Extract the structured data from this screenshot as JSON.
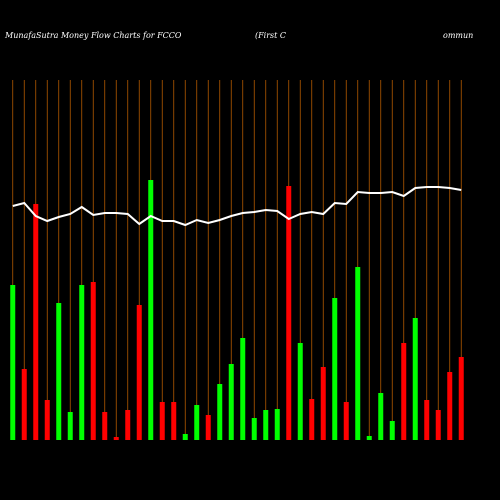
{
  "chart_data": {
    "type": "bar",
    "title_segments": [
      "MunafaSutra  Money Flow  Charts for FCCO",
      "(First C",
      "ommun"
    ],
    "categories": [
      null,
      null,
      null,
      null,
      null,
      null,
      null,
      null,
      null,
      null,
      null,
      null,
      null,
      null,
      null,
      null,
      null,
      null,
      null,
      null,
      null,
      null,
      null,
      null,
      null,
      null,
      null,
      null,
      null,
      null,
      null,
      null,
      null,
      null,
      null,
      null,
      null,
      null,
      null,
      null
    ],
    "values": [
      155,
      71,
      236,
      40,
      137,
      28,
      155,
      158,
      28,
      3,
      30,
      135,
      260,
      38,
      38,
      6,
      35,
      25,
      56,
      76,
      102,
      22,
      30,
      31,
      254,
      97,
      41,
      73,
      142,
      38,
      173,
      4,
      47,
      19,
      97,
      122,
      40,
      30,
      68,
      83
    ],
    "colors": [
      "#00ff00",
      "#ff0000",
      "#ff0000",
      "#ff0000",
      "#00ff00",
      "#00ff00",
      "#00ff00",
      "#ff0000",
      "#ff0000",
      "#ff0000",
      "#ff0000",
      "#ff0000",
      "#00ff00",
      "#ff0000",
      "#ff0000",
      "#00ff00",
      "#00ff00",
      "#ff0000",
      "#00ff00",
      "#00ff00",
      "#00ff00",
      "#00ff00",
      "#00ff00",
      "#00ff00",
      "#ff0000",
      "#00ff00",
      "#ff0000",
      "#ff0000",
      "#00ff00",
      "#ff0000",
      "#00ff00",
      "#00ff00",
      "#00ff00",
      "#00ff00",
      "#ff0000",
      "#00ff00",
      "#ff0000",
      "#ff0000",
      "#ff0000",
      "#ff0000"
    ],
    "line": {
      "color": "#ffffff",
      "values": [
        234,
        237,
        224,
        219,
        223,
        226,
        233,
        225,
        227,
        227,
        226,
        216,
        224,
        219,
        219,
        215,
        220,
        217,
        220,
        224,
        227,
        228,
        230,
        229,
        221,
        226,
        228,
        226,
        237,
        236,
        248,
        247,
        247,
        248,
        244,
        252,
        253,
        253,
        252,
        250
      ]
    },
    "grid_color": "#b35900",
    "ylim": [
      0,
      360
    ]
  }
}
